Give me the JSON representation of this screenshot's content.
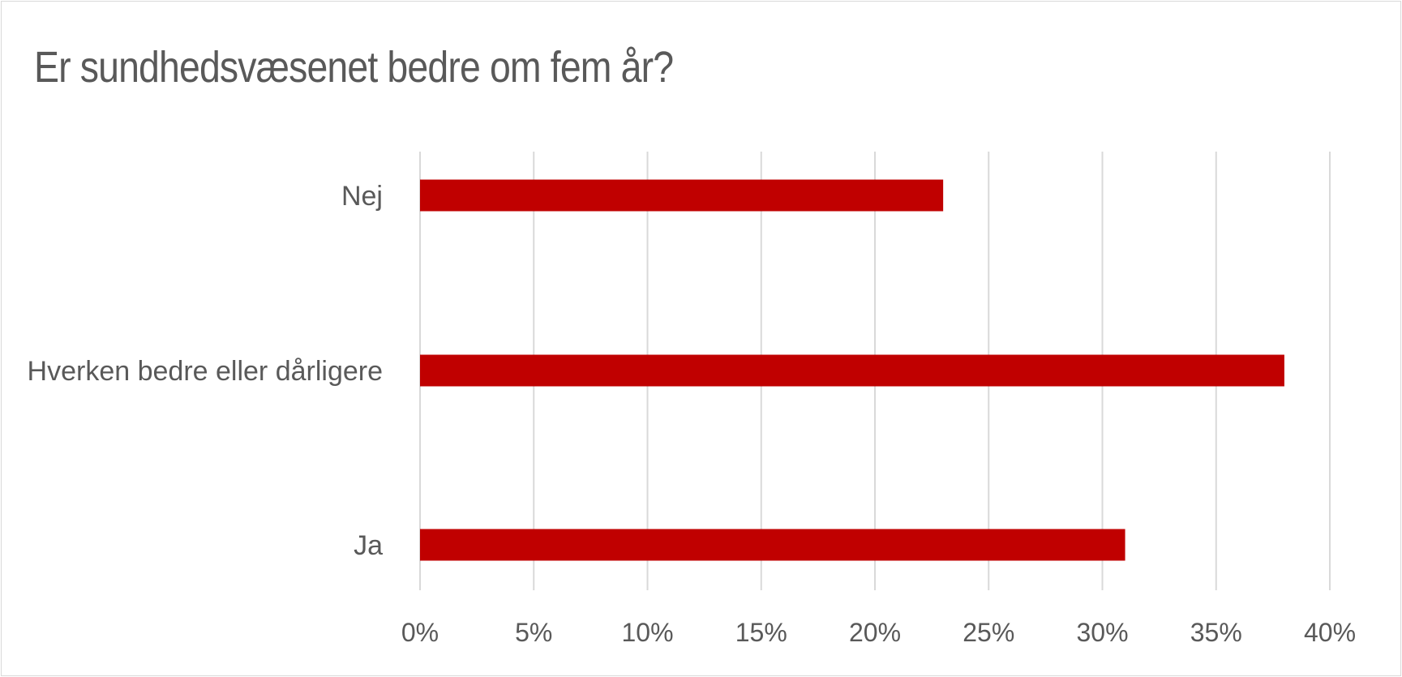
{
  "chart_data": {
    "type": "bar",
    "orientation": "horizontal",
    "title": "Er sundhedsvæsenet bedre om fem år?",
    "categories": [
      "Nej",
      "Hverken bedre eller dårligere",
      "Ja"
    ],
    "values": [
      23,
      38,
      31
    ],
    "value_unit": "%",
    "xlim": [
      0,
      40
    ],
    "x_ticks": [
      0,
      5,
      10,
      15,
      20,
      25,
      30,
      35,
      40
    ],
    "x_tick_labels": [
      "0%",
      "5%",
      "10%",
      "15%",
      "20%",
      "25%",
      "30%",
      "35%",
      "40%"
    ],
    "grid": "vertical",
    "legend": "none",
    "bar_color": "#c00000",
    "grid_color": "#d9d9d9",
    "text_color": "#595959"
  }
}
